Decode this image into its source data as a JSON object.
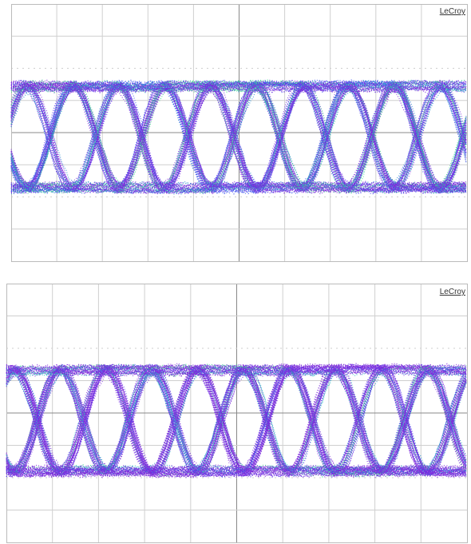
{
  "panels": [
    {
      "brand": "LeCroy"
    },
    {
      "brand": "LeCroy"
    }
  ]
}
